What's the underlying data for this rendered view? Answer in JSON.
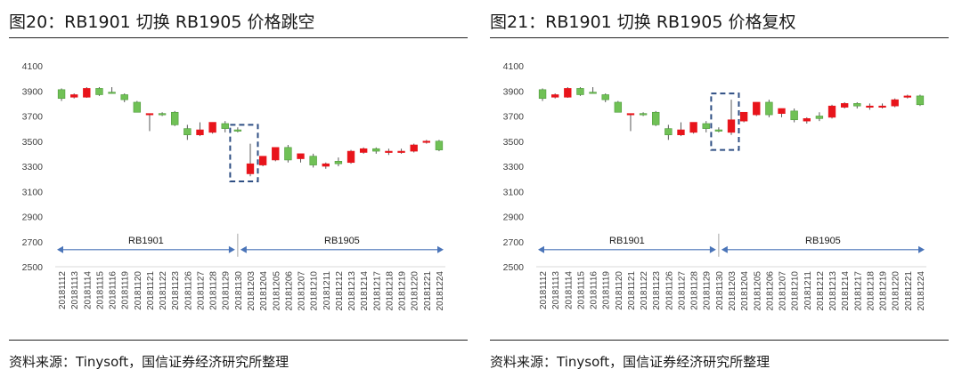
{
  "colors": {
    "up": "#e8141b",
    "down": "#70c156",
    "down_stroke": "#4d9a3a",
    "axis": "#d9d9d9",
    "arrow": "#4a74b8",
    "box": "#2f4f84"
  },
  "panels": [
    {
      "title": "图20：RB1901 切换 RB1905 价格跳空",
      "source": "资料来源：Tinysoft，国信证券经济研究所整理"
    },
    {
      "title": "图21：RB1901 切换 RB1905 价格复权",
      "source": "资料来源：Tinysoft，国信证券经济研究所整理"
    }
  ],
  "chart_data": [
    {
      "type": "candlestick",
      "title": "图20：RB1901 切换 RB1905 价格跳空",
      "ylim": [
        2500,
        4100
      ],
      "yticks": [
        2500,
        2700,
        2900,
        3100,
        3300,
        3500,
        3700,
        3900,
        4100
      ],
      "grid": false,
      "categories": [
        "20181112",
        "20181113",
        "20181114",
        "20181115",
        "20181116",
        "20181119",
        "20181120",
        "20181121",
        "20181122",
        "20181123",
        "20181126",
        "20181127",
        "20181128",
        "20181129",
        "20181130",
        "20181203",
        "20181204",
        "20181205",
        "20181206",
        "20181207",
        "20181210",
        "20181211",
        "20181212",
        "20181213",
        "20181214",
        "20181217",
        "20181218",
        "20181219",
        "20181220",
        "20181221",
        "20181224"
      ],
      "ohlc": [
        [
          3910,
          3920,
          3820,
          3840
        ],
        [
          3850,
          3880,
          3840,
          3870
        ],
        [
          3850,
          3930,
          3845,
          3920
        ],
        [
          3920,
          3930,
          3860,
          3870
        ],
        [
          3890,
          3930,
          3880,
          3880
        ],
        [
          3870,
          3880,
          3810,
          3830
        ],
        [
          3810,
          3820,
          3730,
          3730
        ],
        [
          3720,
          3720,
          3580,
          3720
        ],
        [
          3720,
          3730,
          3700,
          3715
        ],
        [
          3730,
          3740,
          3620,
          3630
        ],
        [
          3600,
          3630,
          3510,
          3550
        ],
        [
          3550,
          3650,
          3540,
          3590
        ],
        [
          3570,
          3650,
          3560,
          3650
        ],
        [
          3640,
          3660,
          3570,
          3600
        ],
        [
          3590,
          3610,
          3570,
          3580
        ],
        [
          3240,
          3480,
          3220,
          3320
        ],
        [
          3310,
          3370,
          3300,
          3380
        ],
        [
          3350,
          3450,
          3340,
          3450
        ],
        [
          3450,
          3470,
          3330,
          3350
        ],
        [
          3360,
          3400,
          3330,
          3400
        ],
        [
          3380,
          3400,
          3290,
          3310
        ],
        [
          3300,
          3330,
          3280,
          3320
        ],
        [
          3340,
          3370,
          3300,
          3320
        ],
        [
          3330,
          3430,
          3320,
          3420
        ],
        [
          3410,
          3450,
          3400,
          3440
        ],
        [
          3440,
          3450,
          3400,
          3420
        ],
        [
          3420,
          3440,
          3390,
          3420
        ],
        [
          3410,
          3440,
          3400,
          3420
        ],
        [
          3420,
          3480,
          3410,
          3470
        ],
        [
          3490,
          3510,
          3480,
          3500
        ],
        [
          3500,
          3510,
          3420,
          3430
        ]
      ],
      "contract_labels": [
        {
          "text": "RB1901",
          "from": "20181112",
          "to": "20181130"
        },
        {
          "text": "RB1905",
          "from": "20181130",
          "to": "20181224"
        }
      ],
      "highlight": {
        "from": "20181130",
        "to": "20181203",
        "ymin": 3180,
        "ymax": 3630
      }
    },
    {
      "type": "candlestick",
      "title": "图21：RB1901 切换 RB1905 价格复权",
      "ylim": [
        2500,
        4100
      ],
      "yticks": [
        2500,
        2700,
        2900,
        3100,
        3300,
        3500,
        3700,
        3900,
        4100
      ],
      "grid": false,
      "categories": [
        "20181112",
        "20181113",
        "20181114",
        "20181115",
        "20181116",
        "20181119",
        "20181120",
        "20181121",
        "20181122",
        "20181123",
        "20181126",
        "20181127",
        "20181128",
        "20181129",
        "20181130",
        "20181203",
        "20181204",
        "20181205",
        "20181206",
        "20181207",
        "20181210",
        "20181211",
        "20181212",
        "20181213",
        "20181214",
        "20181217",
        "20181218",
        "20181219",
        "20181220",
        "20181221",
        "20181224"
      ],
      "ohlc": [
        [
          3910,
          3920,
          3820,
          3840
        ],
        [
          3850,
          3880,
          3840,
          3870
        ],
        [
          3850,
          3930,
          3845,
          3920
        ],
        [
          3920,
          3930,
          3860,
          3870
        ],
        [
          3890,
          3930,
          3880,
          3880
        ],
        [
          3870,
          3880,
          3810,
          3830
        ],
        [
          3810,
          3820,
          3730,
          3730
        ],
        [
          3720,
          3720,
          3580,
          3720
        ],
        [
          3720,
          3730,
          3700,
          3715
        ],
        [
          3730,
          3740,
          3620,
          3630
        ],
        [
          3600,
          3630,
          3510,
          3550
        ],
        [
          3550,
          3650,
          3540,
          3590
        ],
        [
          3570,
          3650,
          3560,
          3650
        ],
        [
          3640,
          3660,
          3570,
          3600
        ],
        [
          3590,
          3610,
          3570,
          3580
        ],
        [
          3570,
          3830,
          3550,
          3670
        ],
        [
          3660,
          3720,
          3650,
          3730
        ],
        [
          3710,
          3810,
          3700,
          3810
        ],
        [
          3810,
          3830,
          3690,
          3710
        ],
        [
          3720,
          3760,
          3690,
          3760
        ],
        [
          3740,
          3760,
          3650,
          3670
        ],
        [
          3660,
          3690,
          3640,
          3680
        ],
        [
          3700,
          3730,
          3660,
          3680
        ],
        [
          3690,
          3790,
          3680,
          3780
        ],
        [
          3770,
          3810,
          3760,
          3800
        ],
        [
          3800,
          3810,
          3760,
          3780
        ],
        [
          3780,
          3800,
          3750,
          3780
        ],
        [
          3770,
          3800,
          3760,
          3780
        ],
        [
          3780,
          3840,
          3770,
          3830
        ],
        [
          3850,
          3870,
          3840,
          3860
        ],
        [
          3860,
          3870,
          3780,
          3790
        ]
      ],
      "contract_labels": [
        {
          "text": "RB1901",
          "from": "20181112",
          "to": "20181130"
        },
        {
          "text": "RB1905",
          "from": "20181130",
          "to": "20181224"
        }
      ],
      "highlight": {
        "from": "20181130",
        "to": "20181203",
        "ymin": 3430,
        "ymax": 3880
      }
    }
  ]
}
